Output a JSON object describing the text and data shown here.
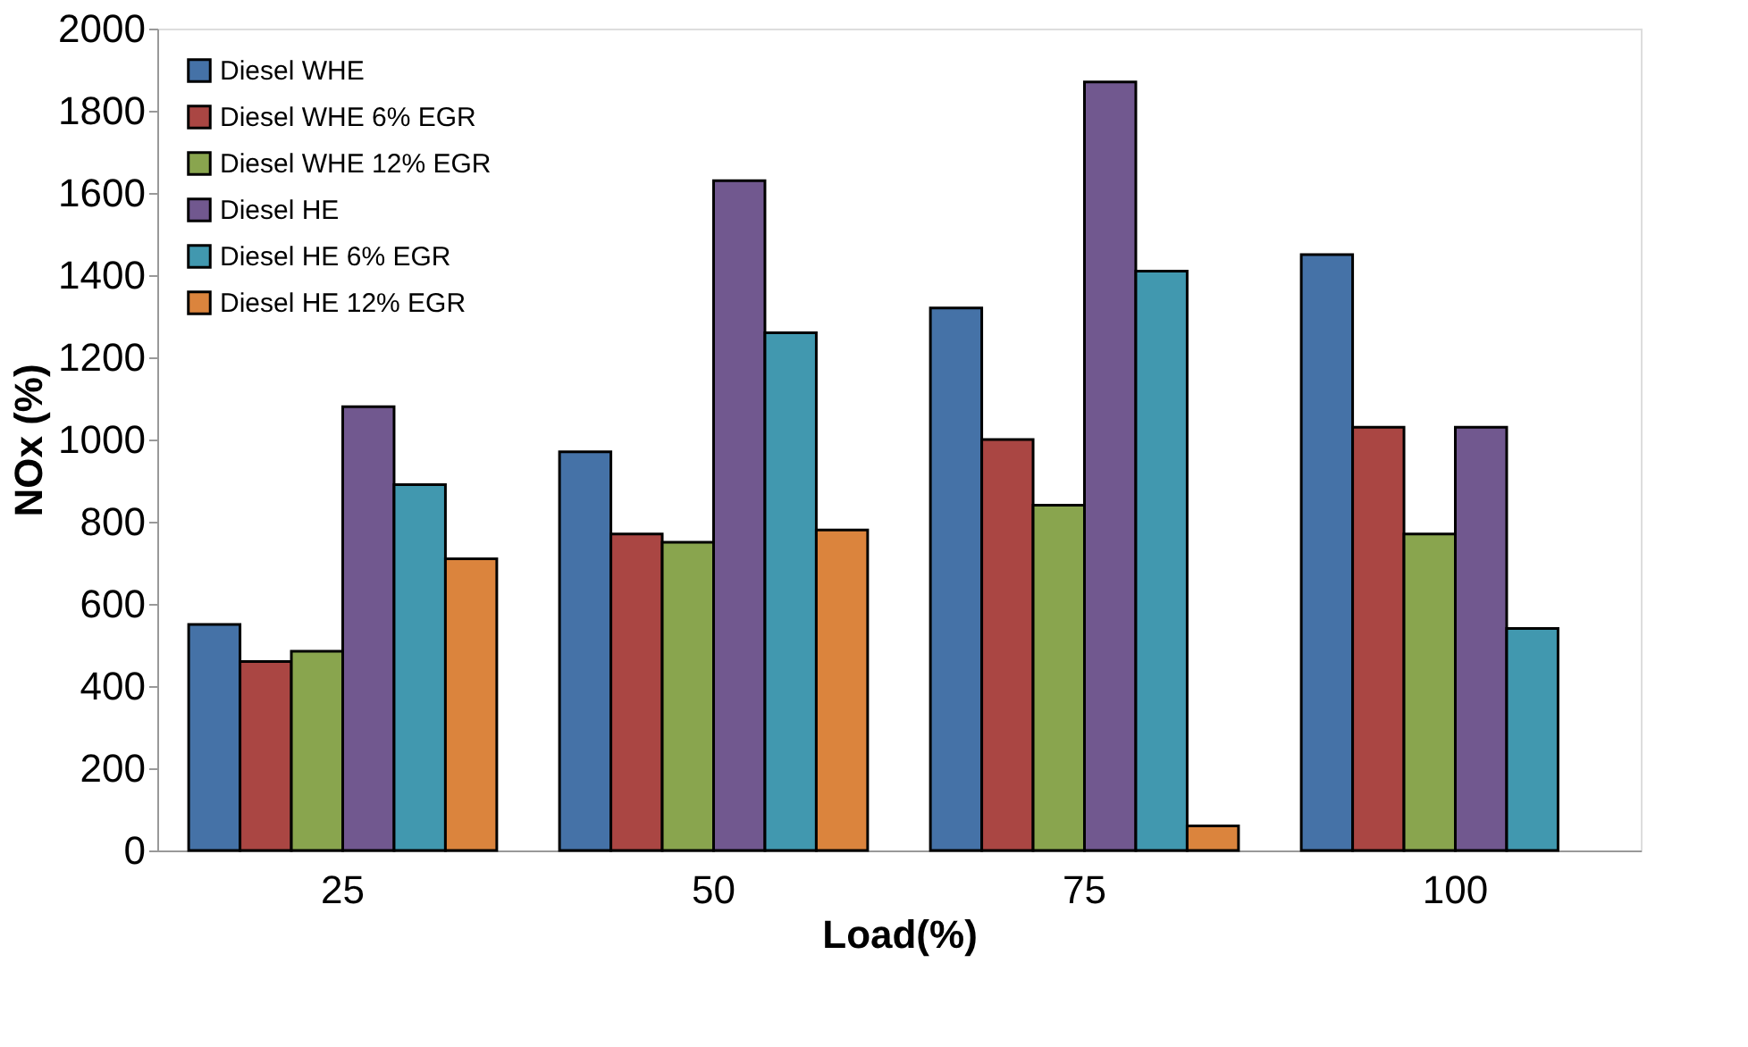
{
  "chart_data": {
    "type": "bar",
    "xlabel": "Load(%)",
    "ylabel": "NOx  (%)",
    "categories": [
      "25",
      "50",
      "75",
      "100"
    ],
    "series": [
      {
        "name": "Diesel WHE",
        "color": "#4572a7",
        "values": [
          550,
          970,
          1320,
          1450
        ]
      },
      {
        "name": "Diesel WHE 6% EGR",
        "color": "#aa4643",
        "values": [
          460,
          770,
          1000,
          1030
        ]
      },
      {
        "name": "Diesel WHE 12% EGR",
        "color": "#89a54e",
        "values": [
          485,
          750,
          840,
          770
        ]
      },
      {
        "name": "Diesel HE",
        "color": "#71588f",
        "values": [
          1080,
          1630,
          1870,
          1030
        ]
      },
      {
        "name": "Diesel HE 6% EGR",
        "color": "#4198af",
        "values": [
          890,
          1260,
          1410,
          540
        ]
      },
      {
        "name": "Diesel HE 12% EGR",
        "color": "#db843d",
        "values": [
          710,
          780,
          60,
          null
        ]
      }
    ],
    "ylim": [
      0,
      2000
    ],
    "yticks": [
      0,
      200,
      400,
      600,
      800,
      1000,
      1200,
      1400,
      1600,
      1800,
      2000
    ],
    "grid": false,
    "legend": "top left"
  }
}
